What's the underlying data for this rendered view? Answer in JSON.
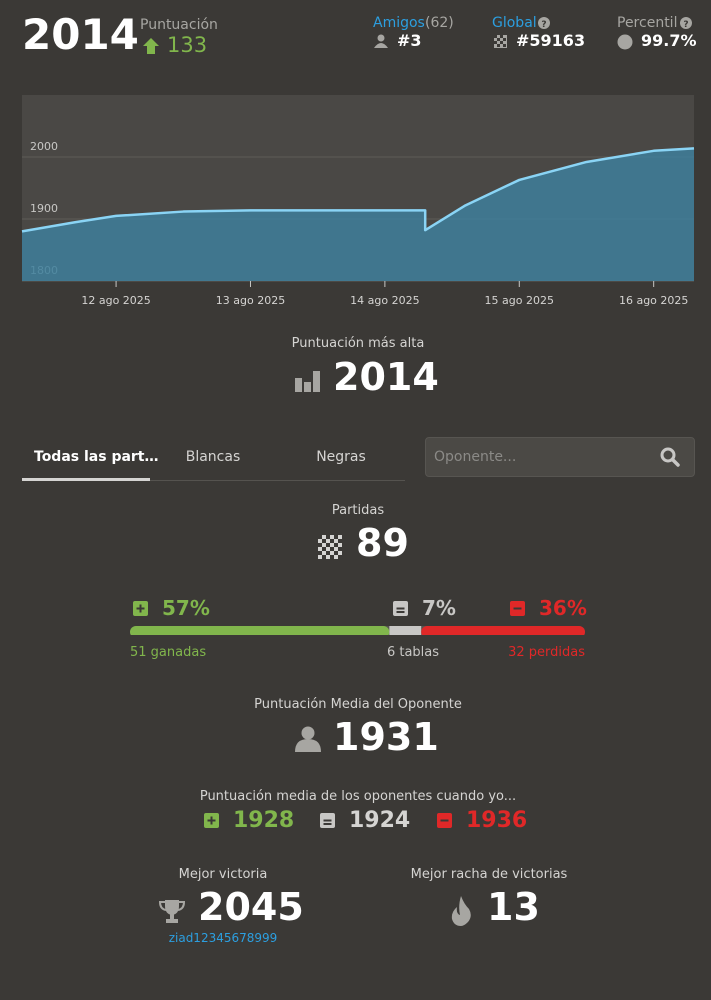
{
  "header": {
    "rating": "2014",
    "rating_label": "Puntuación",
    "rating_change": "133",
    "friends_label": "Amigos",
    "friends_count": "(62)",
    "friends_rank": "#3",
    "global_label": "Global",
    "global_rank": "#59163",
    "percentile_label": "Percentil",
    "percentile": "99.7%"
  },
  "chart_data": {
    "type": "area",
    "x": [
      11.3,
      11.7,
      12,
      12.5,
      13,
      14,
      14.3,
      14.3,
      14.6,
      15,
      15.5,
      16,
      16.3
    ],
    "values": [
      1880,
      1895,
      1905,
      1912,
      1914,
      1914,
      1914,
      1882,
      1922,
      1963,
      1992,
      2010,
      2014
    ],
    "xlim": [
      11.3,
      16.3
    ],
    "xticks": [
      {
        "value": 12,
        "label": "12 ago 2025"
      },
      {
        "value": 13,
        "label": "13 ago 2025"
      },
      {
        "value": 14,
        "label": "14 ago 2025"
      },
      {
        "value": 15,
        "label": "15 ago 2025"
      },
      {
        "value": 16,
        "label": "16 ago 2025"
      }
    ],
    "ylim": [
      1800,
      2100
    ],
    "yticks": [
      1800,
      1900,
      2000
    ],
    "grid": true,
    "color": "#8ad4f5",
    "fill": "#3e7f9b"
  },
  "highest": {
    "label": "Puntuación más alta",
    "value": "2014"
  },
  "tabs": [
    "Todas las part…",
    "Blancas",
    "Negras"
  ],
  "search": {
    "placeholder": "Oponente..."
  },
  "games": {
    "label": "Partidas",
    "value": "89"
  },
  "results": [
    {
      "value": 57,
      "label": "57%",
      "caption": "51 ganadas",
      "color": "#81b64c"
    },
    {
      "value": 7,
      "label": "7%",
      "caption": "6 tablas",
      "color": "#c8c7c5"
    },
    {
      "value": 36,
      "label": "36%",
      "caption": "32 perdidas",
      "color": "#e02828"
    }
  ],
  "opponent_avg": {
    "label": "Puntuación Media del Oponente",
    "value": "1931"
  },
  "opponent_when": {
    "label": "Puntuación media de los oponentes cuando yo...",
    "values": [
      "1928",
      "1924",
      "1936"
    ]
  },
  "best_win": {
    "label": "Mejor victoria",
    "value": "2045",
    "user": "ziad12345678999"
  },
  "best_streak": {
    "label": "Mejor racha de victorias",
    "value": "13"
  }
}
